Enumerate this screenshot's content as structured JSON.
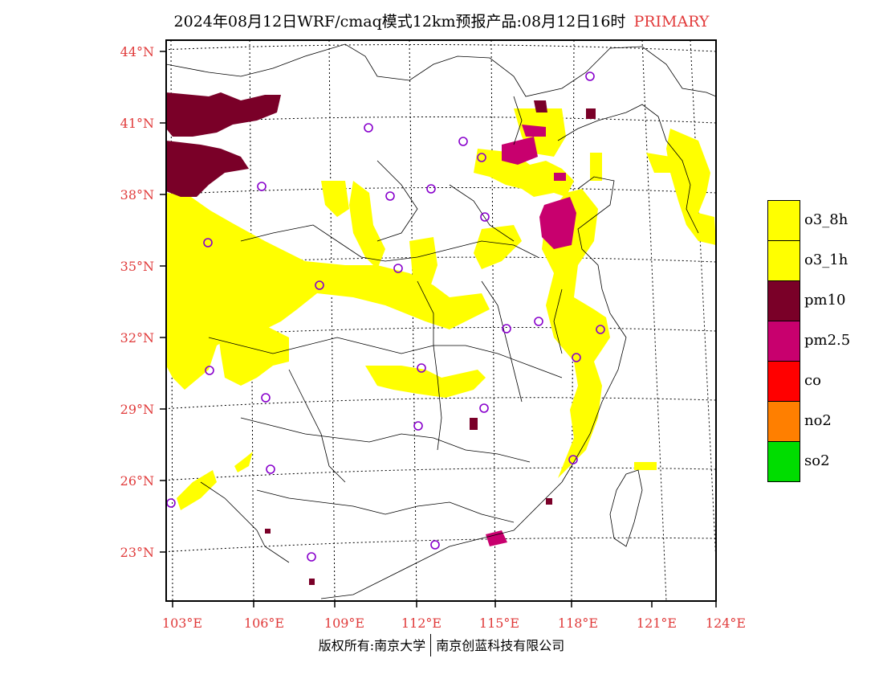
{
  "header": {
    "title": "2024年08月12日WRF/cmaq模式12km预报产品:08月12日16时",
    "tag": "PRIMARY"
  },
  "axes": {
    "lat_labels": [
      "44°N",
      "41°N",
      "38°N",
      "35°N",
      "32°N",
      "29°N",
      "26°N",
      "23°N"
    ],
    "lon_labels": [
      "103°E",
      "106°E",
      "109°E",
      "112°E",
      "115°E",
      "118°E",
      "121°E",
      "124°E"
    ]
  },
  "legend": {
    "items": [
      {
        "label": "o3_8h",
        "color": "#ffff00"
      },
      {
        "label": "o3_1h",
        "color": "#ffff00"
      },
      {
        "label": "pm10",
        "color": "#7a0028"
      },
      {
        "label": "pm2.5",
        "color": "#c8006e"
      },
      {
        "label": "co",
        "color": "#ff0000"
      },
      {
        "label": "no2",
        "color": "#ff7f00"
      },
      {
        "label": "so2",
        "color": "#00dd00"
      }
    ]
  },
  "colors": {
    "o3": "#ffff00",
    "pm10": "#7a0028",
    "pm25": "#c8006e",
    "station_marker": "#8800cc",
    "label": "#e03a3a"
  },
  "footer": {
    "left": "版权所有:南京大学",
    "right": "南京创蓝科技有限公司"
  }
}
